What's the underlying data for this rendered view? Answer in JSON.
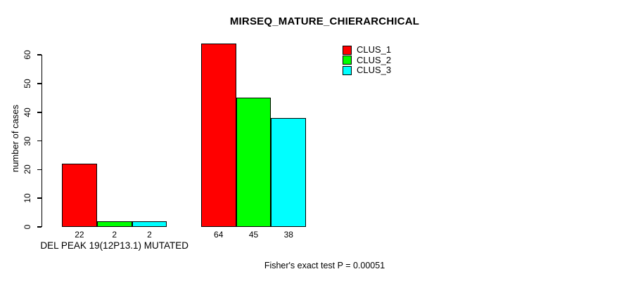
{
  "chart_data": {
    "type": "bar",
    "title": "MIRSEQ_MATURE_CHIERARCHICAL",
    "ylabel": "number of cases",
    "xlabel": "",
    "ylim": [
      0,
      60
    ],
    "yticks": [
      0,
      10,
      20,
      30,
      40,
      50,
      60
    ],
    "grid": false,
    "legend_position": "top-right",
    "categories": [
      "DEL PEAK 19(12P13.1) MUTATED",
      ""
    ],
    "series": [
      {
        "name": "CLUS_1",
        "color": "#ff0000",
        "values": [
          22,
          64
        ]
      },
      {
        "name": "CLUS_2",
        "color": "#00ff00",
        "values": [
          2,
          45
        ]
      },
      {
        "name": "CLUS_3",
        "color": "#00ffff",
        "values": [
          2,
          38
        ]
      }
    ],
    "bar_value_labels": [
      [
        22,
        2,
        2
      ],
      [
        64,
        45,
        38
      ]
    ],
    "annotation": "Fisher's exact test P = 0.00051"
  },
  "colors": {
    "clus_1": "#ff0000",
    "clus_2": "#00ff00",
    "clus_3": "#00ffff",
    "axis": "#000000",
    "background": "#ffffff"
  }
}
